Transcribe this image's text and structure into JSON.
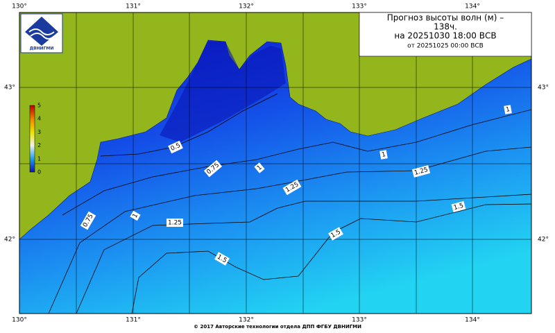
{
  "map": {
    "title": [
      "Прогноз высоты волн (м) –",
      "138ч.",
      "на 20251030 18:00 ВСВ"
    ],
    "subtitle": "от 20251025 00:00 ВСВ",
    "logo": "ДВНИГМИ",
    "lon_labels": [
      "130°",
      "131°",
      "132°",
      "133°",
      "134°"
    ],
    "lat_labels": [
      "43°",
      "42°"
    ],
    "colorbar_ticks": [
      "0",
      "1",
      "2",
      "3",
      "4",
      "5"
    ],
    "contour_labels": [
      "0.5",
      "0.75",
      "1",
      "1.25",
      "1",
      "1",
      "1.25",
      "1.5",
      "1.5",
      "1.5",
      "1.25",
      "1",
      "0.75"
    ]
  },
  "footer": "© 2017 Авторские технологии отдела ДПП ФГБУ ДВНИГМИ"
}
